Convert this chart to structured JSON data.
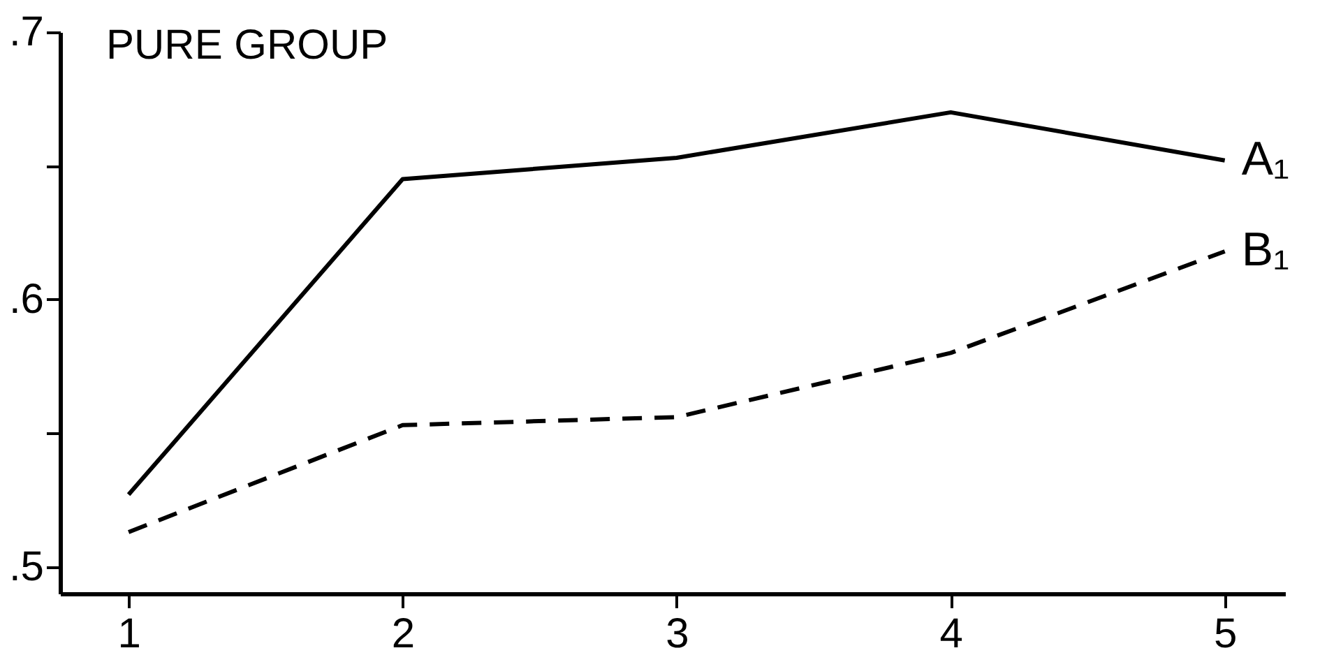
{
  "chart_data": {
    "type": "line",
    "title": "PURE GROUP",
    "x": [
      1,
      2,
      3,
      4,
      5
    ],
    "series": [
      {
        "name": "A₁",
        "color": "#000000",
        "line_style": "solid",
        "values": [
          0.527,
          0.645,
          0.653,
          0.67,
          0.652
        ]
      },
      {
        "name": "B₁",
        "color": "#000000",
        "line_style": "dashed",
        "values": [
          0.513,
          0.553,
          0.556,
          0.58,
          0.618
        ]
      }
    ],
    "xlim": [
      0.75,
      5.22
    ],
    "xticks": [
      1,
      2,
      3,
      4,
      5
    ],
    "ylim": [
      0.49,
      0.7
    ],
    "yticks": [
      {
        "value": 0.5,
        "label": ".5"
      },
      {
        "value": 0.55,
        "label": null
      },
      {
        "value": 0.6,
        "label": ".6"
      },
      {
        "value": 0.65,
        "label": null
      },
      {
        "value": 0.7,
        "label": ".7"
      }
    ],
    "grid": false,
    "marker": "none"
  }
}
